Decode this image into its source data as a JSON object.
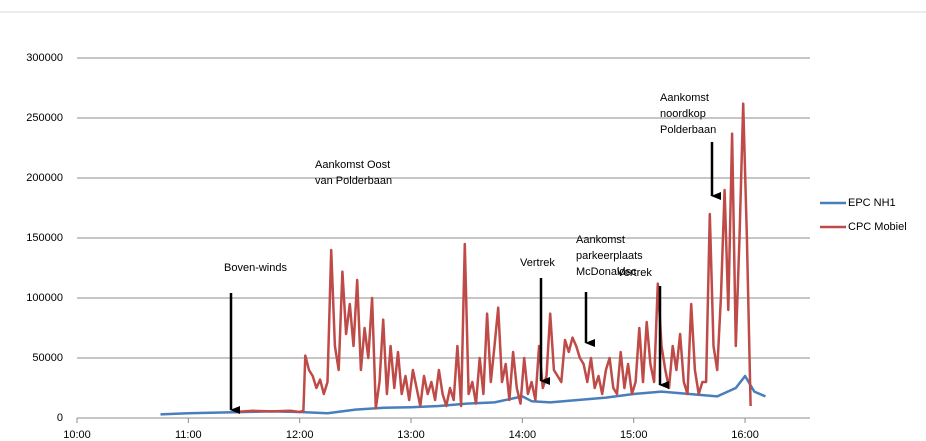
{
  "chart_data": {
    "type": "line",
    "xlim": [
      600,
      995
    ],
    "xticks": [
      {
        "value": 600,
        "label": "10:00"
      },
      {
        "value": 660,
        "label": "11:00"
      },
      {
        "value": 720,
        "label": "12:00"
      },
      {
        "value": 780,
        "label": "13:00"
      },
      {
        "value": 840,
        "label": "14:00"
      },
      {
        "value": 900,
        "label": "15:00"
      },
      {
        "value": 960,
        "label": "16:00"
      }
    ],
    "ylim": [
      0,
      300000
    ],
    "yticks": [
      0,
      50000,
      100000,
      150000,
      200000,
      250000,
      300000
    ],
    "grid": true,
    "legend": "right",
    "series": [
      {
        "name": "EPC NH1",
        "color": "#4a7ebb",
        "x": [
          645,
          660,
          675,
          690,
          705,
          720,
          735,
          750,
          765,
          780,
          795,
          810,
          825,
          840,
          845,
          855,
          870,
          885,
          900,
          915,
          930,
          945,
          955,
          960,
          965,
          971
        ],
        "values": [
          3000,
          4000,
          4500,
          5000,
          5500,
          5000,
          4000,
          7000,
          8500,
          9000,
          10000,
          12000,
          13000,
          18000,
          14000,
          13000,
          15000,
          17000,
          20000,
          22000,
          20000,
          18000,
          25000,
          35000,
          22000,
          18000
        ]
      },
      {
        "name": "CPC Mobiel",
        "color": "#be4b48",
        "x": [
          685,
          695,
          705,
          715,
          720,
          722,
          723,
          725,
          727,
          729,
          731,
          733,
          735,
          737,
          739,
          741,
          743,
          745,
          747,
          749,
          751,
          753,
          755,
          757,
          759,
          761,
          763,
          765,
          767,
          769,
          771,
          773,
          775,
          777,
          779,
          781,
          783,
          785,
          787,
          789,
          791,
          793,
          795,
          797,
          799,
          801,
          803,
          805,
          807,
          809,
          811,
          813,
          815,
          817,
          819,
          821,
          823,
          825,
          827,
          829,
          831,
          833,
          835,
          837,
          839,
          841,
          843,
          845,
          847,
          849,
          851,
          853,
          855,
          857,
          859,
          861,
          863,
          865,
          867,
          869,
          871,
          873,
          875,
          877,
          879,
          881,
          883,
          885,
          887,
          889,
          891,
          893,
          895,
          897,
          899,
          901,
          903,
          905,
          907,
          909,
          911,
          913,
          915,
          917,
          919,
          921,
          923,
          925,
          927,
          929,
          931,
          933,
          935,
          937,
          939,
          941,
          943,
          945,
          947,
          949,
          951,
          953,
          955,
          957,
          959,
          961,
          963
        ],
        "values": [
          5000,
          6000,
          5500,
          6000,
          5000,
          6000,
          52000,
          40000,
          35000,
          25000,
          32000,
          20000,
          30000,
          140000,
          60000,
          40000,
          122000,
          70000,
          95000,
          60000,
          115000,
          40000,
          75000,
          50000,
          100000,
          8000,
          30000,
          82000,
          20000,
          60000,
          25000,
          55000,
          20000,
          35000,
          15000,
          40000,
          25000,
          10000,
          35000,
          20000,
          30000,
          15000,
          40000,
          20000,
          10000,
          25000,
          15000,
          60000,
          10000,
          145000,
          20000,
          30000,
          12000,
          50000,
          20000,
          87000,
          30000,
          60000,
          92000,
          30000,
          45000,
          15000,
          55000,
          25000,
          12000,
          50000,
          20000,
          30000,
          15000,
          60000,
          25000,
          35000,
          87000,
          40000,
          35000,
          30000,
          65000,
          55000,
          67000,
          60000,
          50000,
          45000,
          30000,
          50000,
          25000,
          35000,
          20000,
          40000,
          50000,
          25000,
          20000,
          55000,
          25000,
          45000,
          20000,
          30000,
          75000,
          30000,
          80000,
          45000,
          30000,
          112000,
          60000,
          40000,
          25000,
          60000,
          40000,
          70000,
          30000,
          20000,
          95000,
          40000,
          20000,
          30000,
          30000,
          170000,
          60000,
          40000,
          100000,
          190000,
          90000,
          237000,
          60000,
          150000,
          262000,
          150000,
          10000
        ]
      }
    ],
    "annotations": [
      {
        "lines": [
          "Boven-winds"
        ]
      },
      {
        "lines": [
          "Aankomst Oost",
          "van Polderbaan"
        ]
      },
      {
        "lines": [
          "Vertrek"
        ]
      },
      {
        "lines": [
          "Aankomst",
          "parkeerplaats",
          "McDonaldsc"
        ]
      },
      {
        "lines": [
          "Vertrek"
        ]
      },
      {
        "lines": [
          "Aankomst",
          "noordkop",
          "Polderbaan"
        ]
      }
    ]
  }
}
